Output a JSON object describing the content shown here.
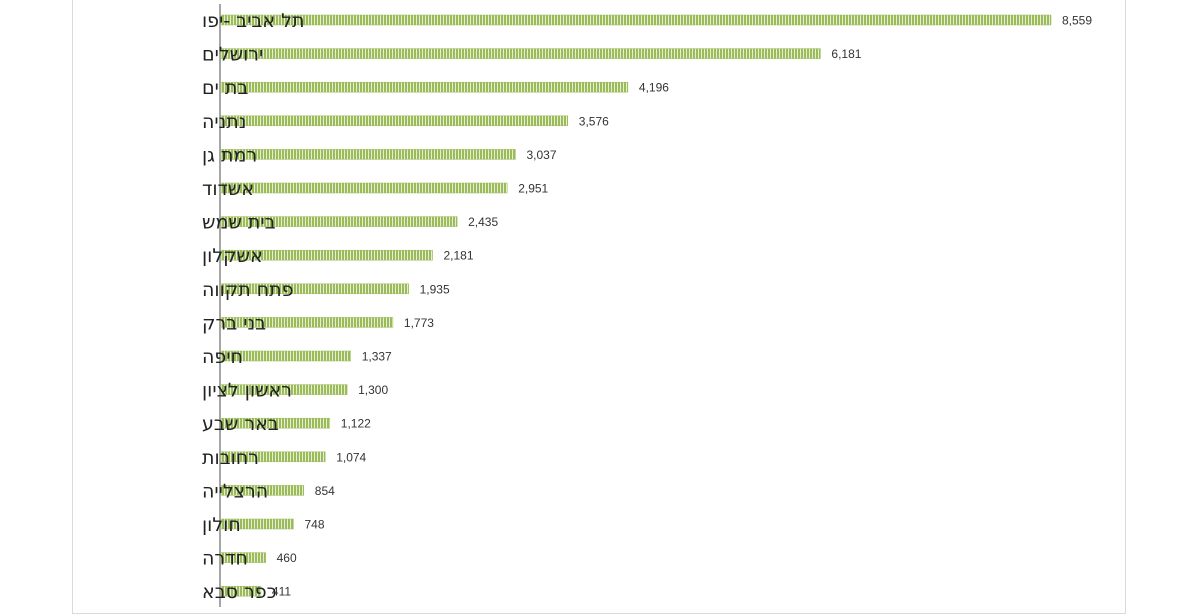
{
  "chart_data": {
    "type": "bar",
    "orientation": "horizontal",
    "categories": [
      "תל אביב -יפו",
      "ירושלים",
      "בת ים",
      "נתניה",
      "רמת גן",
      "אשדוד",
      "בית שמש",
      "אשקלון",
      "פתח תקווה",
      "בני ברק",
      "חיפה",
      "ראשון לציון",
      "באר שבע",
      "רחובות",
      "הרצלייה",
      "חולון",
      "חדרה",
      "כפר סבא"
    ],
    "values": [
      8559,
      6181,
      4196,
      3576,
      3037,
      2951,
      2435,
      2181,
      1935,
      1773,
      1337,
      1300,
      1122,
      1074,
      854,
      748,
      460,
      411
    ],
    "value_labels": [
      "8,559",
      "6,181",
      "4,196",
      "3,576",
      "3,037",
      "2,951",
      "2,435",
      "2,181",
      "1,935",
      "1,773",
      "1,337",
      "1,300",
      "1,122",
      "1,074",
      "854",
      "748",
      "460",
      "411"
    ],
    "xlim": [
      0,
      8559
    ],
    "grid": false,
    "legend": "none",
    "colors": {
      "bar_fill": "#9bbb59",
      "bar_hatch": "#ffffff",
      "axis": "#a6a6a6"
    }
  }
}
